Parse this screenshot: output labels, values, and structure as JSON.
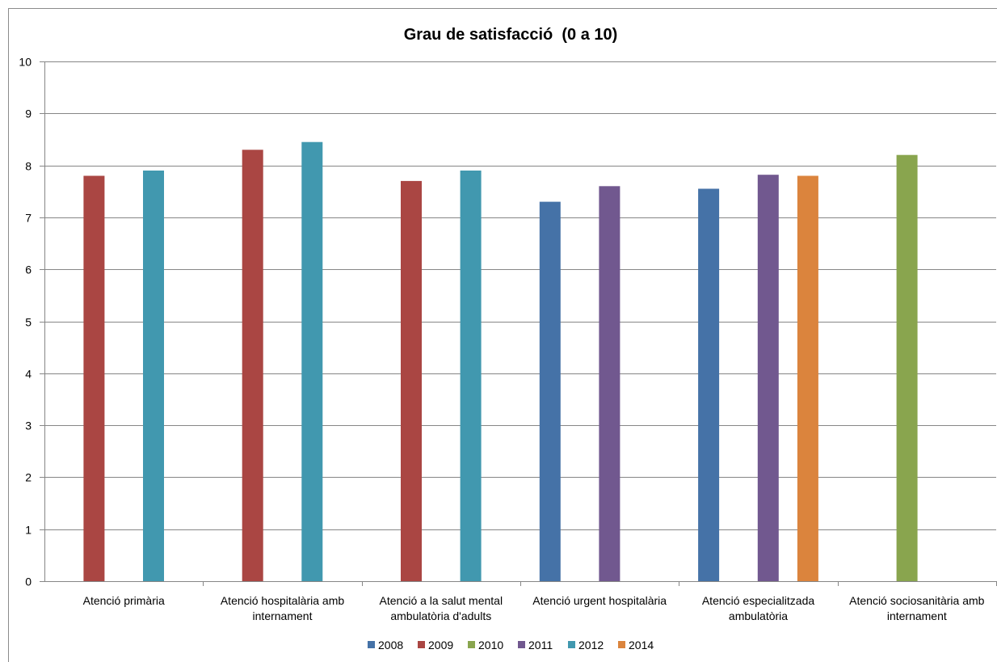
{
  "chart_data": {
    "type": "bar",
    "title": "Grau de satisfacció  (0 a 10)",
    "xlabel": "",
    "ylabel": "",
    "ylim": [
      0,
      10
    ],
    "yticks": [
      "0",
      "1",
      "2",
      "3",
      "4",
      "5",
      "6",
      "7",
      "8",
      "9",
      "10"
    ],
    "grid": true,
    "legend_position": "bottom",
    "categories": [
      [
        "Atenció primària"
      ],
      [
        "Atenció hospitalària amb",
        "internament"
      ],
      [
        "Atenció a la salut mental",
        "ambulatòria d'adults"
      ],
      [
        "Atenció urgent hospitalària"
      ],
      [
        "Atenció especialitzada",
        "ambulatòria"
      ],
      [
        "Atenció sociosanitària amb",
        "internament"
      ]
    ],
    "series": [
      {
        "name": "2008",
        "color": "#4572A7",
        "values": [
          null,
          null,
          null,
          7.3,
          7.55,
          null
        ]
      },
      {
        "name": "2009",
        "color": "#AA4643",
        "values": [
          7.8,
          8.3,
          7.7,
          null,
          null,
          null
        ]
      },
      {
        "name": "2010",
        "color": "#89A54E",
        "values": [
          null,
          null,
          null,
          null,
          null,
          8.2
        ]
      },
      {
        "name": "2011",
        "color": "#71588F",
        "values": [
          null,
          null,
          null,
          7.6,
          7.82,
          null
        ]
      },
      {
        "name": "2012",
        "color": "#4198AF",
        "values": [
          7.9,
          8.45,
          7.9,
          null,
          null,
          null
        ]
      },
      {
        "name": "2014",
        "color": "#DB843D",
        "values": [
          null,
          null,
          null,
          null,
          7.8,
          null
        ]
      }
    ]
  }
}
